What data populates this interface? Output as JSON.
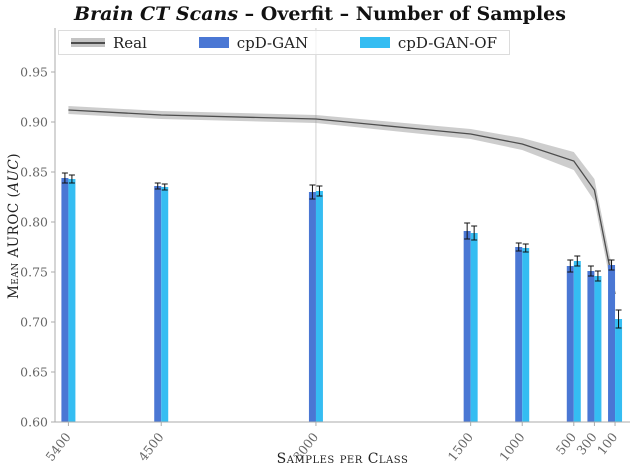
{
  "title": {
    "italic_part": "Brain CT Scans",
    "bold_part": " – Overfit – Number of Samples"
  },
  "legend": [
    {
      "label": "Real",
      "type": "band",
      "color": "#4d4d4d",
      "band_color": "#c4c4c4"
    },
    {
      "label": "cpD-GAN",
      "type": "bar",
      "color": "#4a77d4"
    },
    {
      "label": "cpD-GAN-OF",
      "type": "bar",
      "color": "#35bdf2"
    }
  ],
  "axes": {
    "ylabel_prefix": "Mean AUROC (",
    "ylabel_italic": "AUC",
    "ylabel_suffix": ")",
    "xlabel": "Samples per Class"
  },
  "chart_data": {
    "type": "bar",
    "title": "Brain CT Scans – Overfit – Number of Samples",
    "xlabel": "Samples per Class",
    "ylabel": "Mean AUROC (AUC)",
    "categories": [
      5400,
      4500,
      3000,
      1500,
      1000,
      500,
      300,
      100
    ],
    "category_labels": [
      "5400",
      "4500",
      "3000",
      "1500",
      "1000",
      "500",
      "300",
      "100"
    ],
    "x_axis_reversed": true,
    "xlim": [
      5530,
      -45
    ],
    "ylim": [
      0.6,
      0.994
    ],
    "yticks": [
      0.6,
      0.65,
      0.7,
      0.75,
      0.8,
      0.85,
      0.9,
      0.95
    ],
    "ytick_labels": [
      "0.60",
      "0.65",
      "0.70",
      "0.75",
      "0.80",
      "0.85",
      "0.90",
      "0.95"
    ],
    "grid": false,
    "legend_position": "top",
    "vline_at": 3000,
    "series": [
      {
        "name": "cpD-GAN",
        "type": "bar",
        "color": "#4a77d4",
        "values": [
          0.844,
          0.836,
          0.83,
          0.791,
          0.775,
          0.756,
          0.751,
          0.757
        ],
        "errors": [
          0.005,
          0.003,
          0.007,
          0.008,
          0.004,
          0.006,
          0.005,
          0.005
        ]
      },
      {
        "name": "cpD-GAN-OF",
        "type": "bar",
        "color": "#35bdf2",
        "values": [
          0.843,
          0.835,
          0.831,
          0.789,
          0.774,
          0.761,
          0.746,
          0.703
        ],
        "errors": [
          0.004,
          0.003,
          0.005,
          0.007,
          0.004,
          0.005,
          0.005,
          0.009
        ]
      },
      {
        "name": "Real",
        "type": "line",
        "color": "#4d4d4d",
        "band_fill": "#9c9c9c",
        "values": [
          0.912,
          0.907,
          0.903,
          0.888,
          0.878,
          0.861,
          0.832,
          0.728
        ],
        "band": [
          0.004,
          0.004,
          0.004,
          0.005,
          0.006,
          0.009,
          0.011,
          0.012
        ]
      }
    ]
  }
}
